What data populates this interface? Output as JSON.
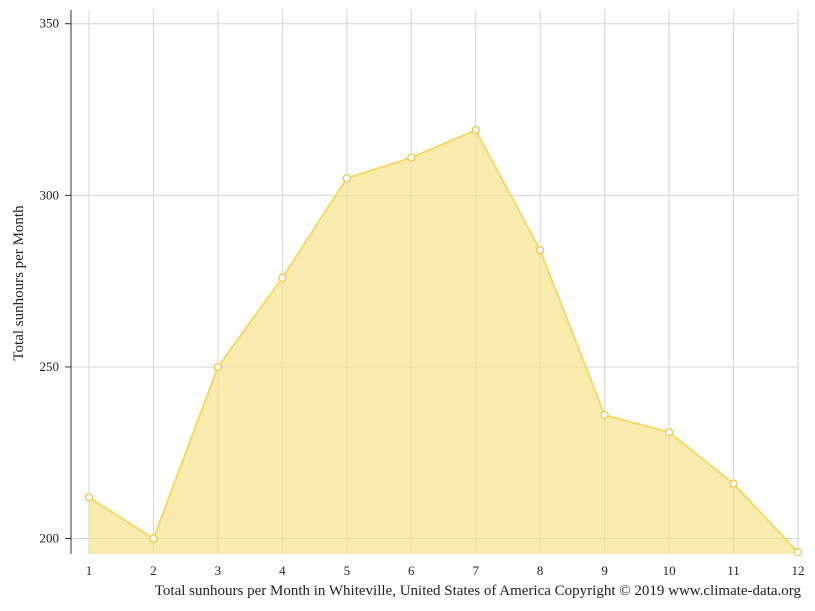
{
  "colors": {
    "area_fill": "#f7e38a",
    "area_line": "#f5d96b",
    "marker_stroke": "#e8c64a",
    "grid": "#d5d5d5",
    "axis": "#333333"
  },
  "chart_data": {
    "type": "area",
    "x": [
      1,
      2,
      3,
      4,
      5,
      6,
      7,
      8,
      9,
      10,
      11,
      12
    ],
    "series": [
      {
        "values": [
          212,
          200,
          250,
          276,
          305,
          311,
          319,
          284,
          236,
          231,
          216,
          196
        ]
      }
    ],
    "xlabel": "",
    "ylabel": "Total sunhours per Month",
    "ylim": [
      195.5,
      354
    ],
    "yticks": [
      200,
      250,
      300,
      350
    ],
    "grid": true,
    "legend": "none",
    "caption": "Total sunhours per Month in Whiteville, United States of America Copyright © 2019 www.climate-data.org"
  }
}
